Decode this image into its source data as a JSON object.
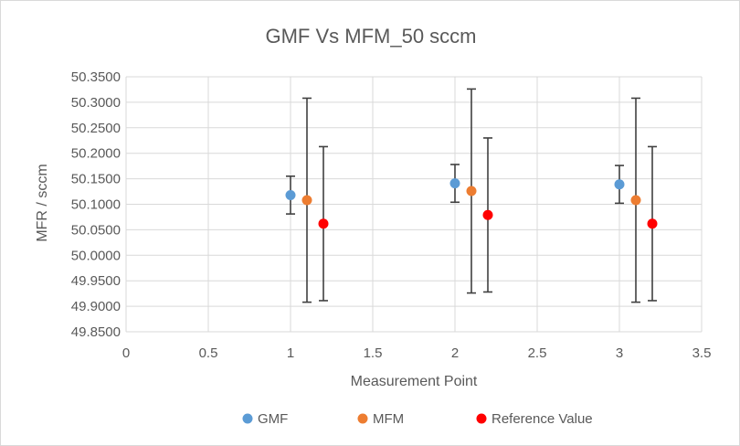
{
  "chart_data": {
    "type": "scatter",
    "title": "GMF Vs MFM_50 sccm",
    "xlabel": "Measurement Point",
    "ylabel": "MFR / sccm",
    "xlim": [
      0,
      3.5
    ],
    "ylim": [
      49.85,
      50.35
    ],
    "xticks": [
      "0",
      "0.5",
      "1",
      "1.5",
      "2",
      "2.5",
      "3",
      "3.5"
    ],
    "yticks": [
      "49.8500",
      "49.9000",
      "49.9500",
      "50.0000",
      "50.0500",
      "50.1000",
      "50.1500",
      "50.2000",
      "50.2500",
      "50.3000",
      "50.3500"
    ],
    "grid": "both",
    "legend_position": "bottom",
    "series": [
      {
        "name": "GMF",
        "color": "#5b9bd5",
        "points": [
          {
            "x": 1,
            "y": 50.118,
            "err": 0.037
          },
          {
            "x": 2,
            "y": 50.141,
            "err": 0.037
          },
          {
            "x": 3,
            "y": 50.139,
            "err": 0.037
          }
        ]
      },
      {
        "name": "MFM",
        "color": "#ed7d31",
        "points": [
          {
            "x": 1.1,
            "y": 50.108,
            "err": 0.2
          },
          {
            "x": 2.1,
            "y": 50.126,
            "err": 0.2
          },
          {
            "x": 3.1,
            "y": 50.108,
            "err": 0.2
          }
        ]
      },
      {
        "name": "Reference Value",
        "color": "#ff0000",
        "points": [
          {
            "x": 1.2,
            "y": 50.062,
            "err": 0.151
          },
          {
            "x": 2.2,
            "y": 50.079,
            "err": 0.151
          },
          {
            "x": 3.2,
            "y": 50.062,
            "err": 0.151
          }
        ]
      }
    ]
  }
}
